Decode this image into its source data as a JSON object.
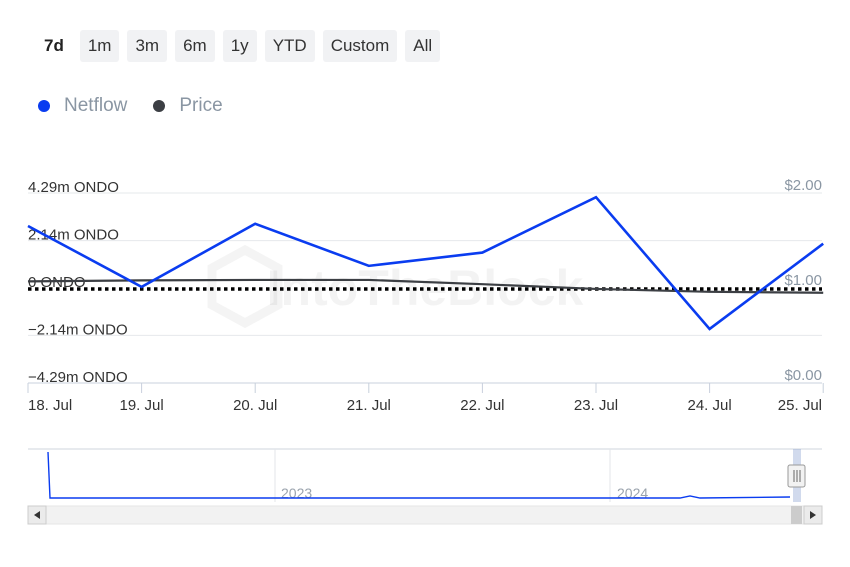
{
  "range_selector": {
    "buttons": [
      "7d",
      "1m",
      "3m",
      "6m",
      "1y",
      "YTD",
      "Custom",
      "All"
    ],
    "selected": "7d"
  },
  "legend": [
    {
      "name": "Netflow",
      "color": "#0a3cf0"
    },
    {
      "name": "Price",
      "color": "#3c3f44"
    }
  ],
  "watermark": "IntoTheBlock",
  "navigator": {
    "year_labels": [
      "2023",
      "2024"
    ],
    "scroll_left_icon": "left-arrow-icon",
    "scroll_right_icon": "right-arrow-icon",
    "handle_icon": "grip-icon"
  },
  "chart_data": {
    "type": "line",
    "x": [
      "18. Jul",
      "19. Jul",
      "20. Jul",
      "21. Jul",
      "22. Jul",
      "23. Jul",
      "24. Jul",
      "25. Jul"
    ],
    "series": [
      {
        "name": "Netflow",
        "axis": "left",
        "color": "#0a3cf0",
        "values": [
          2.8,
          0.05,
          2.9,
          1.0,
          1.6,
          4.1,
          -1.85,
          2.0
        ]
      },
      {
        "name": "Price",
        "axis": "right",
        "color": "#3c3f44",
        "values": [
          1.07,
          1.08,
          1.085,
          1.085,
          1.04,
          0.99,
          0.96,
          0.95
        ]
      }
    ],
    "y_left": {
      "ticks": [
        4.29,
        2.14,
        0,
        -2.14,
        -4.29
      ],
      "tick_labels": [
        "4.29m ONDO",
        "2.14m ONDO",
        "0 ONDO",
        "−2.14m ONDO",
        "−4.29m ONDO"
      ],
      "range": [
        -4.29,
        4.29
      ]
    },
    "y_right": {
      "ticks": [
        2.0,
        1.0,
        0.0
      ],
      "tick_labels": [
        "$2.00",
        "$1.00",
        "$0.00"
      ],
      "range": [
        0,
        2
      ]
    },
    "zero_line": "dotted",
    "grid": true
  }
}
